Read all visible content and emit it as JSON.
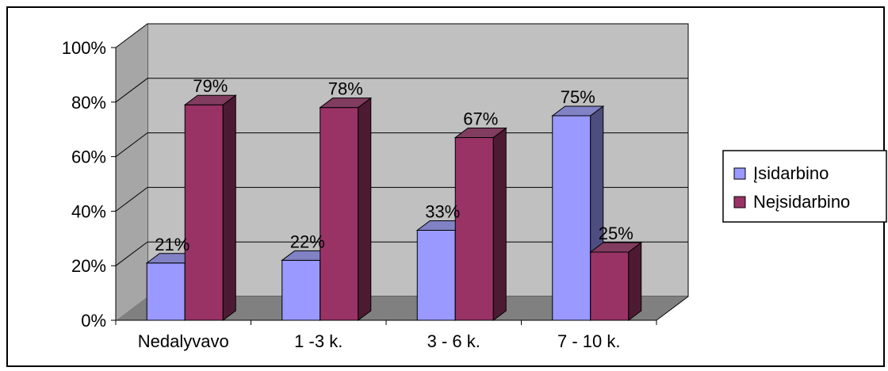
{
  "chart_data": {
    "type": "bar",
    "categories": [
      "Nedalyvavo",
      "1 -3 k.",
      "3 - 6 k.",
      "7 - 10 k."
    ],
    "series": [
      {
        "name": "Įsidarbino",
        "values": [
          21,
          22,
          33,
          75
        ],
        "color": "#9999ff"
      },
      {
        "name": "Neįsidarbino",
        "values": [
          79,
          78,
          67,
          25
        ],
        "color": "#993366"
      }
    ],
    "data_labels": {
      "Įsidarbino": [
        "21%",
        "22%",
        "33%",
        "75%"
      ],
      "Neįsidarbino": [
        "79%",
        "78%",
        "67%",
        "25%"
      ]
    },
    "y_ticks": [
      "0%",
      "20%",
      "40%",
      "60%",
      "80%",
      "100%"
    ],
    "ylim": [
      0,
      100
    ],
    "grid": true,
    "legend_position": "right",
    "three_d": true,
    "wall_color": "#c0c0c0",
    "floor_color": "#808080"
  }
}
